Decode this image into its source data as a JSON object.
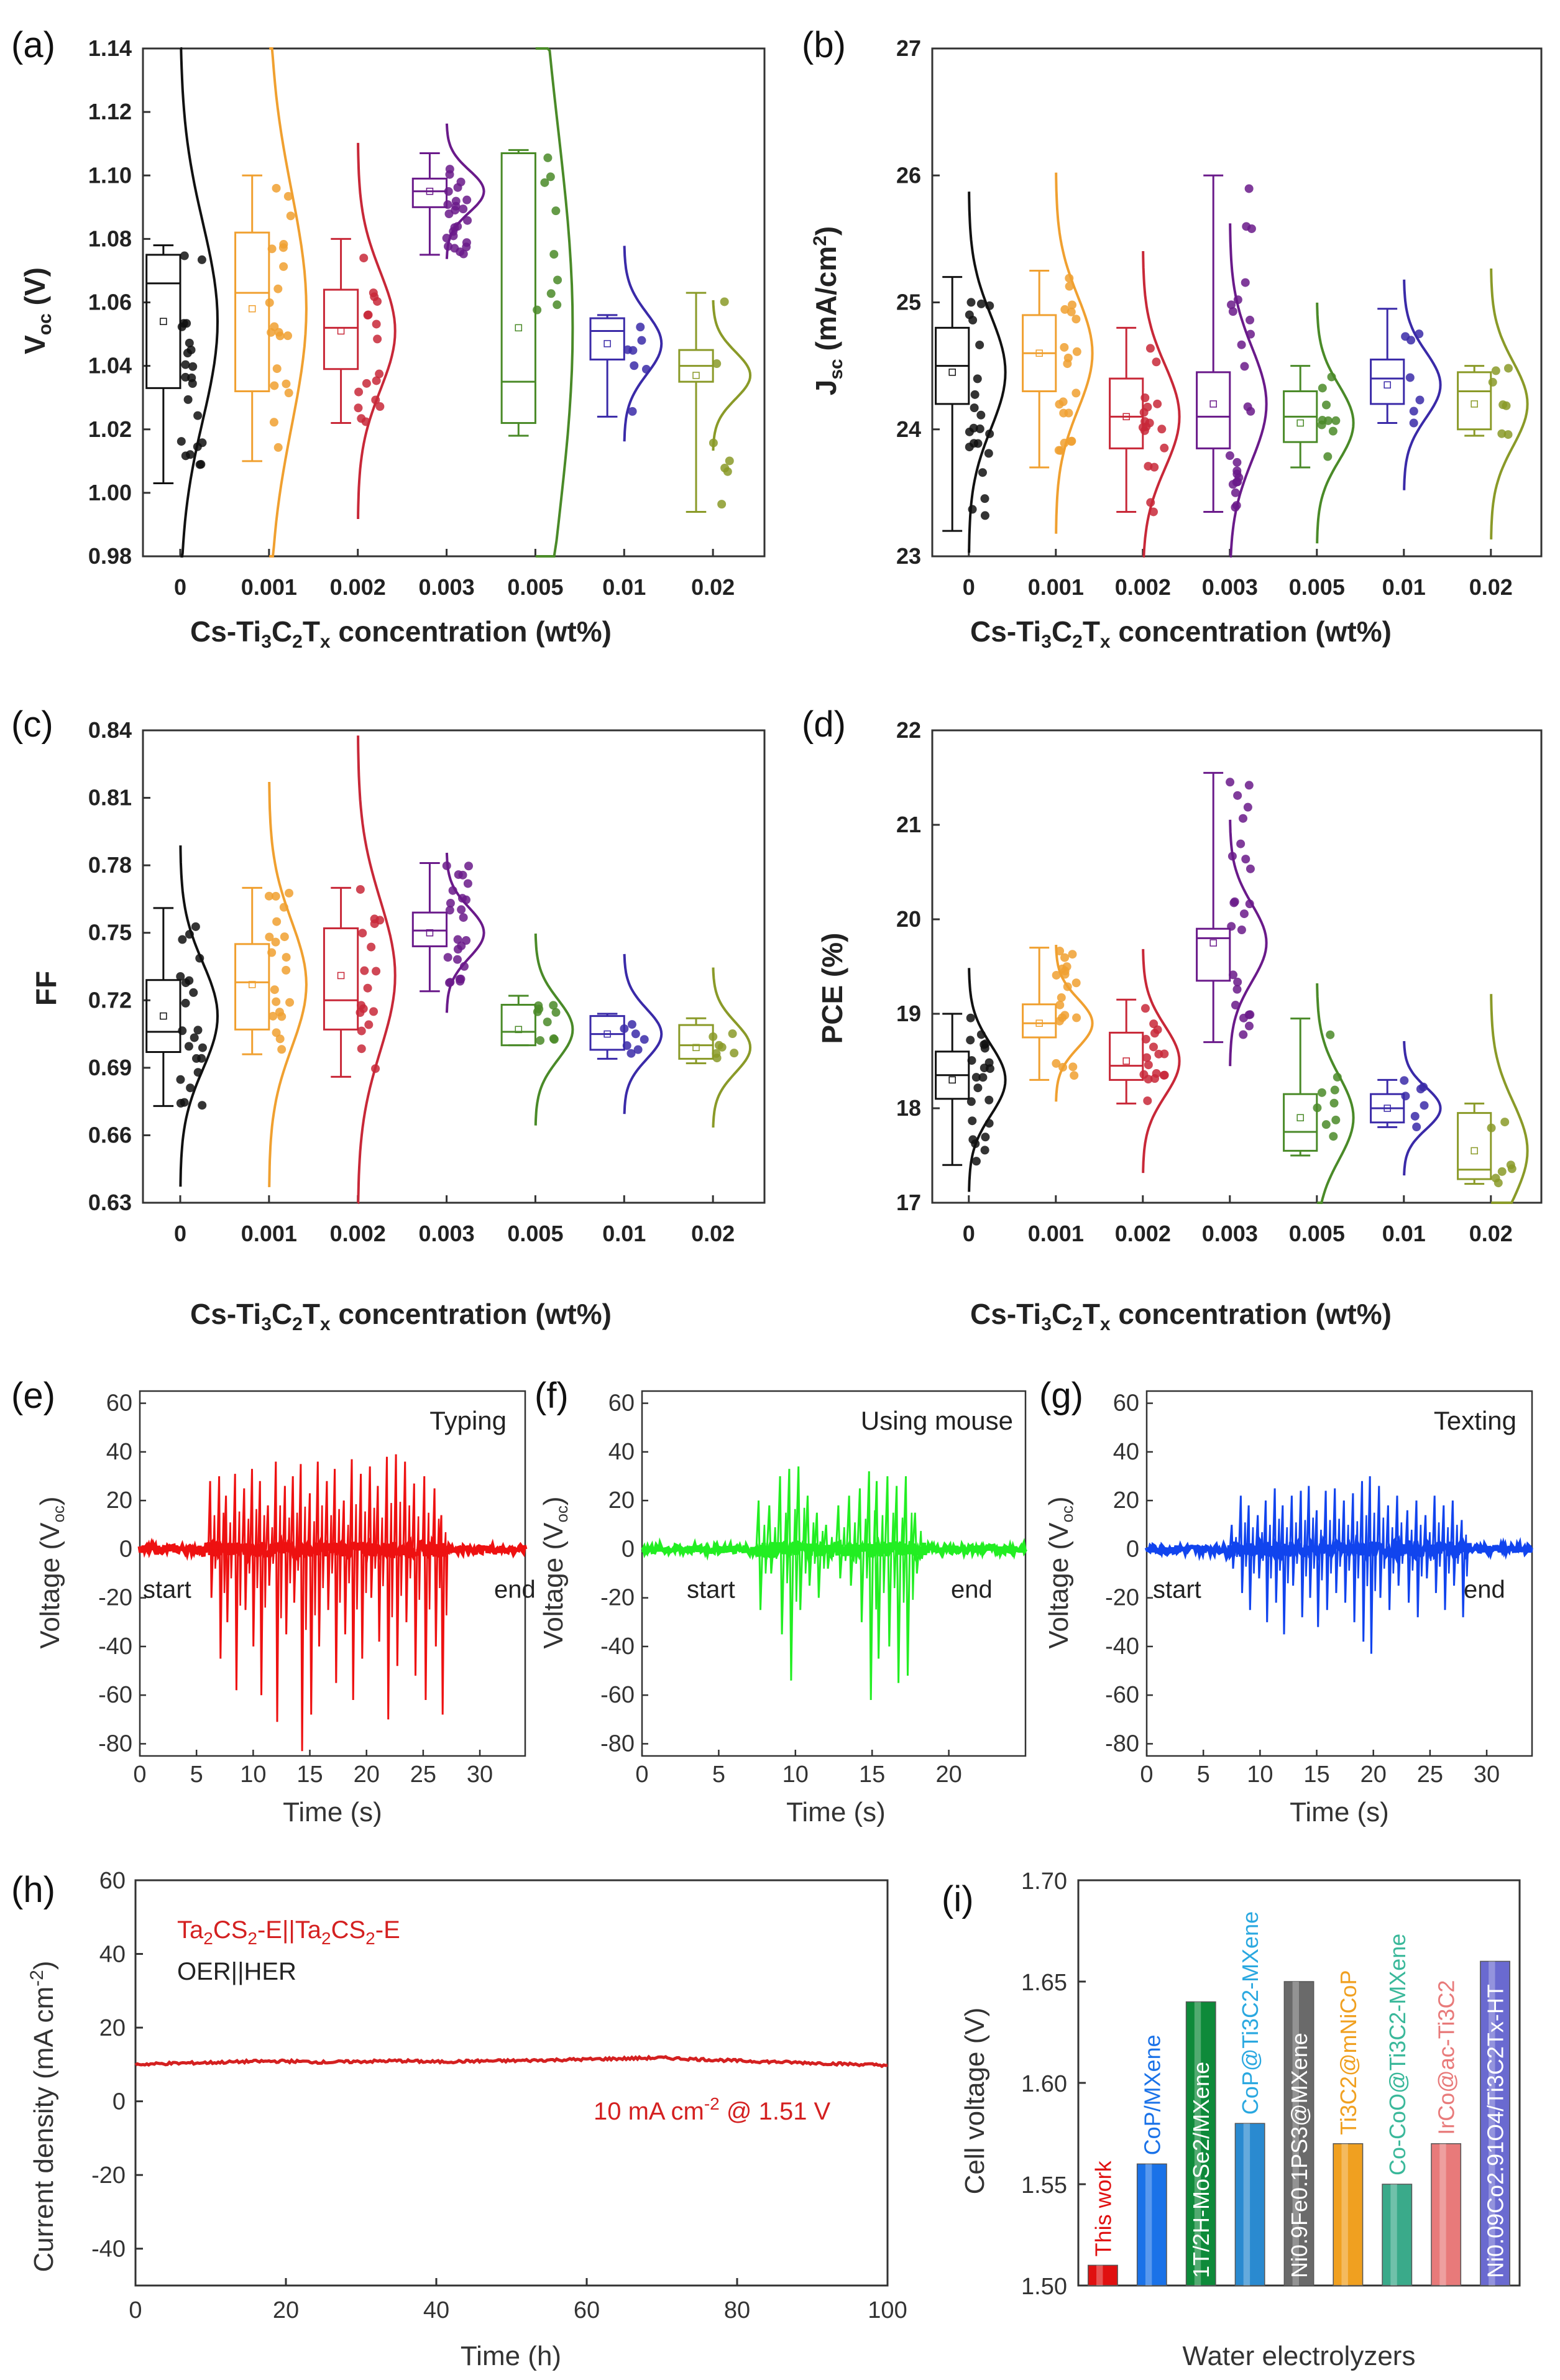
{
  "colors": {
    "boxplot": [
      "#111111",
      "#f0a030",
      "#c82838",
      "#6a1a8a",
      "#4a8a28",
      "#3a2aa8",
      "#8a9a28"
    ],
    "typing": "#ee1111",
    "mouse": "#22ee22",
    "texting": "#1144ee",
    "stability": "#d42020",
    "legend_red": "#d42020",
    "legend_black": "#222222"
  },
  "chart_data": [
    {
      "panel": "(a)",
      "type": "box_violin",
      "categories": [
        "0",
        "0.001",
        "0.002",
        "0.003",
        "0.005",
        "0.01",
        "0.02"
      ],
      "xlabel": "Cs-Ti3C2Tx concentration (wt%)",
      "ylabel": "Voc (V)",
      "ylim": [
        0.98,
        1.14
      ],
      "yticks": [
        "0.98",
        "1.00",
        "1.02",
        "1.04",
        "1.06",
        "1.08",
        "1.10",
        "1.12",
        "1.14"
      ],
      "box": [
        {
          "min": 1.003,
          "q1": 1.033,
          "median": 1.066,
          "q3": 1.075,
          "max": 1.078,
          "mean": 1.054
        },
        {
          "min": 1.01,
          "q1": 1.032,
          "median": 1.063,
          "q3": 1.082,
          "max": 1.1,
          "mean": 1.058
        },
        {
          "min": 1.022,
          "q1": 1.039,
          "median": 1.052,
          "q3": 1.064,
          "max": 1.08,
          "mean": 1.051
        },
        {
          "min": 1.075,
          "q1": 1.09,
          "median": 1.095,
          "q3": 1.099,
          "max": 1.107,
          "mean": 1.095
        },
        {
          "min": 1.018,
          "q1": 1.022,
          "median": 1.035,
          "q3": 1.107,
          "max": 1.108,
          "mean": 1.052
        },
        {
          "min": 1.024,
          "q1": 1.042,
          "median": 1.051,
          "q3": 1.055,
          "max": 1.056,
          "mean": 1.047
        },
        {
          "min": 0.994,
          "q1": 1.035,
          "median": 1.04,
          "q3": 1.045,
          "max": 1.063,
          "mean": 1.037
        }
      ]
    },
    {
      "panel": "(b)",
      "type": "box_violin",
      "categories": [
        "0",
        "0.001",
        "0.002",
        "0.003",
        "0.005",
        "0.01",
        "0.02"
      ],
      "xlabel": "Cs-Ti3C2Tx concentration (wt%)",
      "ylabel": "Jsc (mA/cm2)",
      "ylim": [
        23,
        27
      ],
      "yticks": [
        "23",
        "24",
        "25",
        "26",
        "27"
      ],
      "box": [
        {
          "min": 23.2,
          "q1": 24.2,
          "median": 24.5,
          "q3": 24.8,
          "max": 25.2,
          "mean": 24.45
        },
        {
          "min": 23.7,
          "q1": 24.3,
          "median": 24.6,
          "q3": 24.9,
          "max": 25.25,
          "mean": 24.6
        },
        {
          "min": 23.35,
          "q1": 23.85,
          "median": 24.1,
          "q3": 24.4,
          "max": 24.8,
          "mean": 24.1
        },
        {
          "min": 23.35,
          "q1": 23.85,
          "median": 24.1,
          "q3": 24.45,
          "max": 26.0,
          "mean": 24.2
        },
        {
          "min": 23.7,
          "q1": 23.9,
          "median": 24.1,
          "q3": 24.3,
          "max": 24.5,
          "mean": 24.05
        },
        {
          "min": 24.05,
          "q1": 24.2,
          "median": 24.4,
          "q3": 24.55,
          "max": 24.95,
          "mean": 24.35
        },
        {
          "min": 23.95,
          "q1": 24.0,
          "median": 24.3,
          "q3": 24.45,
          "max": 24.5,
          "mean": 24.2
        }
      ]
    },
    {
      "panel": "(c)",
      "type": "box_violin",
      "categories": [
        "0",
        "0.001",
        "0.002",
        "0.003",
        "0.005",
        "0.01",
        "0.02"
      ],
      "xlabel": "Cs-Ti3C2Tx concentration (wt%)",
      "ylabel": "FF",
      "ylim": [
        0.63,
        0.84
      ],
      "yticks": [
        "0.63",
        "0.66",
        "0.69",
        "0.72",
        "0.75",
        "0.78",
        "0.81",
        "0.84"
      ],
      "box": [
        {
          "min": 0.673,
          "q1": 0.697,
          "median": 0.706,
          "q3": 0.729,
          "max": 0.761,
          "mean": 0.713
        },
        {
          "min": 0.696,
          "q1": 0.707,
          "median": 0.728,
          "q3": 0.745,
          "max": 0.77,
          "mean": 0.727
        },
        {
          "min": 0.686,
          "q1": 0.707,
          "median": 0.72,
          "q3": 0.752,
          "max": 0.77,
          "mean": 0.731
        },
        {
          "min": 0.724,
          "q1": 0.744,
          "median": 0.751,
          "q3": 0.759,
          "max": 0.781,
          "mean": 0.75
        },
        {
          "min": 0.7,
          "q1": 0.7,
          "median": 0.706,
          "q3": 0.718,
          "max": 0.722,
          "mean": 0.707
        },
        {
          "min": 0.694,
          "q1": 0.698,
          "median": 0.705,
          "q3": 0.713,
          "max": 0.714,
          "mean": 0.705
        },
        {
          "min": 0.692,
          "q1": 0.694,
          "median": 0.7,
          "q3": 0.709,
          "max": 0.712,
          "mean": 0.699
        }
      ]
    },
    {
      "panel": "(d)",
      "type": "box_violin",
      "categories": [
        "0",
        "0.001",
        "0.002",
        "0.003",
        "0.005",
        "0.01",
        "0.02"
      ],
      "xlabel": "Cs-Ti3C2Tx concentration (wt%)",
      "ylabel": "PCE (%)",
      "ylim": [
        17,
        22
      ],
      "yticks": [
        "17",
        "18",
        "19",
        "20",
        "21",
        "22"
      ],
      "box": [
        {
          "min": 17.4,
          "q1": 18.1,
          "median": 18.35,
          "q3": 18.6,
          "max": 19.0,
          "mean": 18.3
        },
        {
          "min": 18.3,
          "q1": 18.75,
          "median": 18.9,
          "q3": 19.1,
          "max": 19.7,
          "mean": 18.9
        },
        {
          "min": 18.05,
          "q1": 18.3,
          "median": 18.45,
          "q3": 18.8,
          "max": 19.15,
          "mean": 18.5
        },
        {
          "min": 18.7,
          "q1": 19.35,
          "median": 19.8,
          "q3": 19.9,
          "max": 21.55,
          "mean": 19.75
        },
        {
          "min": 17.5,
          "q1": 17.55,
          "median": 17.75,
          "q3": 18.15,
          "max": 18.95,
          "mean": 17.9
        },
        {
          "min": 17.8,
          "q1": 17.85,
          "median": 18.0,
          "q3": 18.15,
          "max": 18.3,
          "mean": 18.0
        },
        {
          "min": 17.2,
          "q1": 17.25,
          "median": 17.35,
          "q3": 17.95,
          "max": 18.05,
          "mean": 17.55
        }
      ]
    },
    {
      "panel": "(e)",
      "type": "line",
      "label": "Typing",
      "start_label": "start",
      "end_label": "end",
      "xlabel": "Time (s)",
      "ylabel": "Voltage (Voc)",
      "xlim": [
        0,
        34
      ],
      "ylim": [
        -85,
        65
      ],
      "xticks": [
        "0",
        "5",
        "10",
        "15",
        "20",
        "25",
        "30"
      ],
      "yticks": [
        "-80",
        "-60",
        "-40",
        "-20",
        "0",
        "20",
        "40",
        "60"
      ],
      "active_window": [
        5.5,
        27.0
      ],
      "spikes": [
        [
          6.2,
          28,
          -20
        ],
        [
          7.0,
          30,
          -45
        ],
        [
          7.6,
          22,
          -30
        ],
        [
          8.4,
          31,
          -58
        ],
        [
          9.2,
          25,
          -25
        ],
        [
          9.9,
          33,
          -40
        ],
        [
          10.6,
          28,
          -60
        ],
        [
          11.3,
          18,
          -15
        ],
        [
          12.0,
          36,
          -71
        ],
        [
          12.8,
          26,
          -35
        ],
        [
          13.5,
          30,
          -22
        ],
        [
          14.2,
          35,
          -83
        ],
        [
          15.0,
          23,
          -68
        ],
        [
          15.7,
          36,
          -40
        ],
        [
          16.5,
          28,
          -25
        ],
        [
          17.2,
          33,
          -55
        ],
        [
          18.0,
          20,
          -35
        ],
        [
          18.7,
          37,
          -62
        ],
        [
          19.5,
          31,
          -45
        ],
        [
          20.3,
          34,
          -20
        ],
        [
          21.0,
          26,
          -38
        ],
        [
          21.8,
          38,
          -70
        ],
        [
          22.6,
          39,
          -48
        ],
        [
          23.4,
          36,
          -30
        ],
        [
          24.2,
          27,
          -52
        ],
        [
          25.1,
          30,
          -62
        ],
        [
          26.0,
          25,
          -40
        ],
        [
          26.6,
          14,
          -68
        ]
      ]
    },
    {
      "panel": "(f)",
      "type": "line",
      "label": "Using mouse",
      "start_label": "start",
      "end_label": "end",
      "xlabel": "Time (s)",
      "ylabel": "Voltage (Voc)",
      "xlim": [
        0,
        25
      ],
      "ylim": [
        -85,
        65
      ],
      "xticks": [
        "0",
        "5",
        "10",
        "15",
        "20"
      ],
      "yticks": [
        "-80",
        "-60",
        "-40",
        "-20",
        "0",
        "20",
        "40",
        "60"
      ],
      "active_window": [
        7.0,
        18.5
      ],
      "spikes": [
        [
          7.6,
          20,
          -25
        ],
        [
          8.3,
          18,
          -10
        ],
        [
          9.0,
          30,
          -35
        ],
        [
          9.6,
          33,
          -54
        ],
        [
          10.2,
          34,
          -25
        ],
        [
          10.8,
          22,
          -15
        ],
        [
          11.4,
          15,
          -20
        ],
        [
          12.0,
          10,
          -8
        ],
        [
          12.8,
          18,
          -12
        ],
        [
          13.5,
          22,
          -15
        ],
        [
          14.2,
          25,
          -30
        ],
        [
          14.8,
          32,
          -62
        ],
        [
          15.3,
          28,
          -45
        ],
        [
          16.0,
          30,
          -40
        ],
        [
          16.6,
          26,
          -55
        ],
        [
          17.2,
          30,
          -52
        ],
        [
          17.8,
          15,
          -10
        ]
      ]
    },
    {
      "panel": "(g)",
      "type": "line",
      "label": "Texting",
      "start_label": "start",
      "end_label": "end",
      "xlabel": "Time (s)",
      "ylabel": "Voltage (Voc)",
      "xlim": [
        0,
        34
      ],
      "ylim": [
        -85,
        65
      ],
      "xticks": [
        "0",
        "5",
        "10",
        "15",
        "20",
        "25",
        "30"
      ],
      "yticks": [
        "-80",
        "-60",
        "-40",
        "-20",
        "0",
        "20",
        "40",
        "60"
      ],
      "active_window": [
        7.0,
        28.5
      ],
      "spikes": [
        [
          7.5,
          10,
          -8
        ],
        [
          8.3,
          22,
          -18
        ],
        [
          9.0,
          18,
          -25
        ],
        [
          9.8,
          14,
          -12
        ],
        [
          10.5,
          20,
          -30
        ],
        [
          11.3,
          25,
          -22
        ],
        [
          12.0,
          18,
          -35
        ],
        [
          12.8,
          22,
          -15
        ],
        [
          13.6,
          24,
          -28
        ],
        [
          14.3,
          26,
          -20
        ],
        [
          15.0,
          16,
          -32
        ],
        [
          15.8,
          24,
          -25
        ],
        [
          16.6,
          25,
          -18
        ],
        [
          17.4,
          20,
          -22
        ],
        [
          18.2,
          23,
          -30
        ],
        [
          19.0,
          28,
          -38
        ],
        [
          19.7,
          30,
          -43
        ],
        [
          20.5,
          26,
          -20
        ],
        [
          21.3,
          18,
          -25
        ],
        [
          22.1,
          22,
          -15
        ],
        [
          23.0,
          16,
          -22
        ],
        [
          23.8,
          20,
          -28
        ],
        [
          24.6,
          14,
          -12
        ],
        [
          25.4,
          22,
          -18
        ],
        [
          26.2,
          18,
          -25
        ],
        [
          27.0,
          20,
          -15
        ],
        [
          27.8,
          12,
          -28
        ]
      ]
    },
    {
      "panel": "(h)",
      "type": "line",
      "xlabel": "Time (h)",
      "ylabel": "Current density (mA cm-2)",
      "xlim": [
        0,
        100
      ],
      "ylim": [
        -50,
        60
      ],
      "xticks": [
        "0",
        "20",
        "40",
        "60",
        "80",
        "100"
      ],
      "yticks": [
        "-40",
        "-20",
        "0",
        "20",
        "40",
        "60"
      ],
      "legend": [
        "Ta2CS2-E||Ta2CS2-E",
        "OER||HER"
      ],
      "annotation": "10 mA cm-2 @ 1.51 V",
      "x": [
        0,
        5,
        10,
        15,
        20,
        25,
        30,
        35,
        40,
        45,
        50,
        55,
        60,
        65,
        70,
        75,
        80,
        85,
        90,
        95,
        100
      ],
      "y": [
        10.0,
        10.3,
        10.5,
        10.8,
        10.9,
        10.6,
        10.8,
        11.0,
        10.7,
        10.9,
        11.0,
        11.2,
        11.4,
        11.6,
        11.8,
        11.4,
        11.0,
        10.7,
        10.4,
        10.1,
        9.8
      ]
    },
    {
      "panel": "(i)",
      "type": "bar",
      "xlabel": "Water electrolyzers",
      "ylabel": "Cell voltage (V)",
      "ylim": [
        1.5,
        1.7
      ],
      "yticks": [
        "1.50",
        "1.55",
        "1.60",
        "1.65",
        "1.70"
      ],
      "categories": [
        "This work",
        "CoP/MXene",
        "1T/2H-MoSe2/MXene",
        "CoP@Ti3C2-MXene",
        "Ni0.9Fe0.1PS3@MXene",
        "Ti3C2@mNiCoP",
        "Co-CoO@Ti3C2-MXene",
        "IrCo@ac-Ti3C2",
        "Ni0.09Co2.91O4/Ti3C2Tx-HT"
      ],
      "values": [
        1.51,
        1.56,
        1.64,
        1.58,
        1.65,
        1.57,
        1.55,
        1.57,
        1.66
      ],
      "bar_colors": [
        "#e01010",
        "#1a72e8",
        "#0e8a3a",
        "#2a8ad0",
        "#6a6a6a",
        "#f0a020",
        "#3aaa8a",
        "#e87a7a",
        "#6a6ad0"
      ],
      "label_colors": [
        "#e01010",
        "#1a72e8",
        "#ffffff",
        "#2aa8e0",
        "#ffffff",
        "#f0a020",
        "#3ab89a",
        "#e87a7a",
        "#ffffff"
      ]
    }
  ],
  "labels": {
    "a": "(a)",
    "b": "(b)",
    "c": "(c)",
    "d": "(d)",
    "e": "(e)",
    "f": "(f)",
    "g": "(g)",
    "h": "(h)",
    "i": "(i)"
  },
  "text": {
    "voc_main": "V",
    "voc_sub": "oc",
    "voc_tail": " (V)",
    "jsc_main": "J",
    "jsc_sub": "sc",
    "jsc_mid": " (mA/cm",
    "jsc_sup": "2",
    "jsc_tail": ")",
    "ff": "FF",
    "pce": "PCE (%)",
    "conc_a": "Cs-Ti",
    "conc_3": "3",
    "conc_c": "C",
    "conc_2": "2",
    "conc_t": "T",
    "conc_x": "x",
    "conc_tail": " concentration (wt%)",
    "volt_a": "Voltage (V",
    "volt_sub": "oc",
    "volt_b": ")",
    "time_s": "Time (s)",
    "time_h": "Time (h)",
    "cd_a": "Current density (mA cm",
    "cd_sup": "-2",
    "cd_b": ")",
    "h_leg1_a": "Ta",
    "h_leg1_2": "2",
    "h_leg1_b": "CS",
    "h_leg1_c": "2",
    "h_leg1_d": "-E||Ta",
    "h_leg1_e": "2",
    "h_leg1_f": "CS",
    "h_leg1_g": "2",
    "h_leg1_h": "-E",
    "h_leg2": "OER||HER",
    "h_ann_a": "10 mA cm",
    "h_ann_sup": "-2",
    "h_ann_b": " @ 1.51 V",
    "cell_voltage": "Cell voltage (V)",
    "water": "Water electrolyzers"
  }
}
